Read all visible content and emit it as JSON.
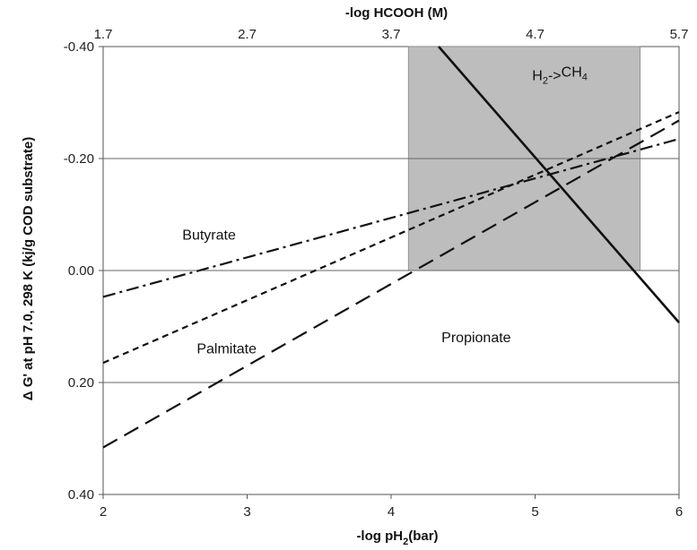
{
  "chart_data": {
    "type": "line",
    "xlabel": "-log pH",
    "xlabel_sub": "2",
    "xlabel_unit": "(bar)",
    "x2label": "-log HCOOH (M)",
    "ylabel": "Δ G' at pH 7.0, 298 K (kj/g COD substrate)",
    "xlim": [
      2,
      6
    ],
    "ylim": [
      -0.4,
      0.4
    ],
    "y_inverted": true,
    "x_ticks": [
      {
        "value": 2,
        "label": "2"
      },
      {
        "value": 3,
        "label": "3"
      },
      {
        "value": 4,
        "label": "4"
      },
      {
        "value": 5,
        "label": "5"
      },
      {
        "value": 6,
        "label": "6"
      }
    ],
    "x2_ticks": [
      {
        "value": 1.7,
        "label": "1.7"
      },
      {
        "value": 2.7,
        "label": "2.7"
      },
      {
        "value": 3.7,
        "label": "3.7"
      },
      {
        "value": 4.7,
        "label": "4.7"
      },
      {
        "value": 5.7,
        "label": "5.7"
      }
    ],
    "y_ticks": [
      {
        "value": -0.4,
        "label": "-0.40"
      },
      {
        "value": -0.2,
        "label": "-0.20"
      },
      {
        "value": 0.0,
        "label": "0.00"
      },
      {
        "value": 0.2,
        "label": "0.20"
      },
      {
        "value": 0.4,
        "label": "0.40"
      }
    ],
    "gridlines_y": [
      -0.2,
      0.0,
      0.2
    ],
    "shaded_region": {
      "x_from": 4.12,
      "x_to": 5.73,
      "y_from": -0.4,
      "y_to": 0.0,
      "color": "#bdbdbd"
    },
    "series": [
      {
        "name": "Butyrate",
        "style": "dashdot",
        "x": [
          2,
          6
        ],
        "y": [
          0.047,
          -0.235
        ],
        "label_x": 2.55,
        "label_y": -0.055
      },
      {
        "name": "Palmitate",
        "style": "dashed",
        "x": [
          2,
          6
        ],
        "y": [
          0.165,
          -0.283
        ],
        "label_x": 2.65,
        "label_y": 0.148
      },
      {
        "name": "Propionate",
        "style": "longdash",
        "x": [
          2,
          6
        ],
        "y": [
          0.316,
          -0.268
        ],
        "label_x": 4.35,
        "label_y": 0.128
      },
      {
        "name": "H2->CH4",
        "style": "solid",
        "x": [
          4.33,
          6
        ],
        "y": [
          -0.4,
          0.093
        ],
        "label_x": 4.98,
        "label_y": -0.34
      }
    ]
  }
}
